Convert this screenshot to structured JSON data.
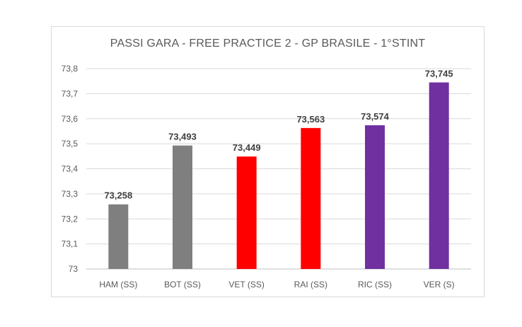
{
  "chart_data": {
    "type": "bar",
    "title": "PASSI GARA - FREE PRACTICE 2 - GP BRASILE - 1°STINT",
    "categories": [
      "HAM (SS)",
      "BOT (SS)",
      "VET (SS)",
      "RAI (SS)",
      "RIC (SS)",
      "VER (S)"
    ],
    "values": [
      73.258,
      73.493,
      73.449,
      73.563,
      73.574,
      73.745
    ],
    "value_labels": [
      "73,258",
      "73,493",
      "73,449",
      "73,563",
      "73,574",
      "73,745"
    ],
    "bar_colors": [
      "#7f7f7f",
      "#7f7f7f",
      "#ff0000",
      "#ff0000",
      "#7030a0",
      "#7030a0"
    ],
    "ylim": [
      73,
      73.8
    ],
    "yticks": [
      73,
      73.1,
      73.2,
      73.3,
      73.4,
      73.5,
      73.6,
      73.7,
      73.8
    ],
    "ytick_labels": [
      "73",
      "73,1",
      "73,2",
      "73,3",
      "73,4",
      "73,5",
      "73,6",
      "73,7",
      "73,8"
    ],
    "grid": true,
    "legend": false,
    "xlabel": "",
    "ylabel": ""
  }
}
